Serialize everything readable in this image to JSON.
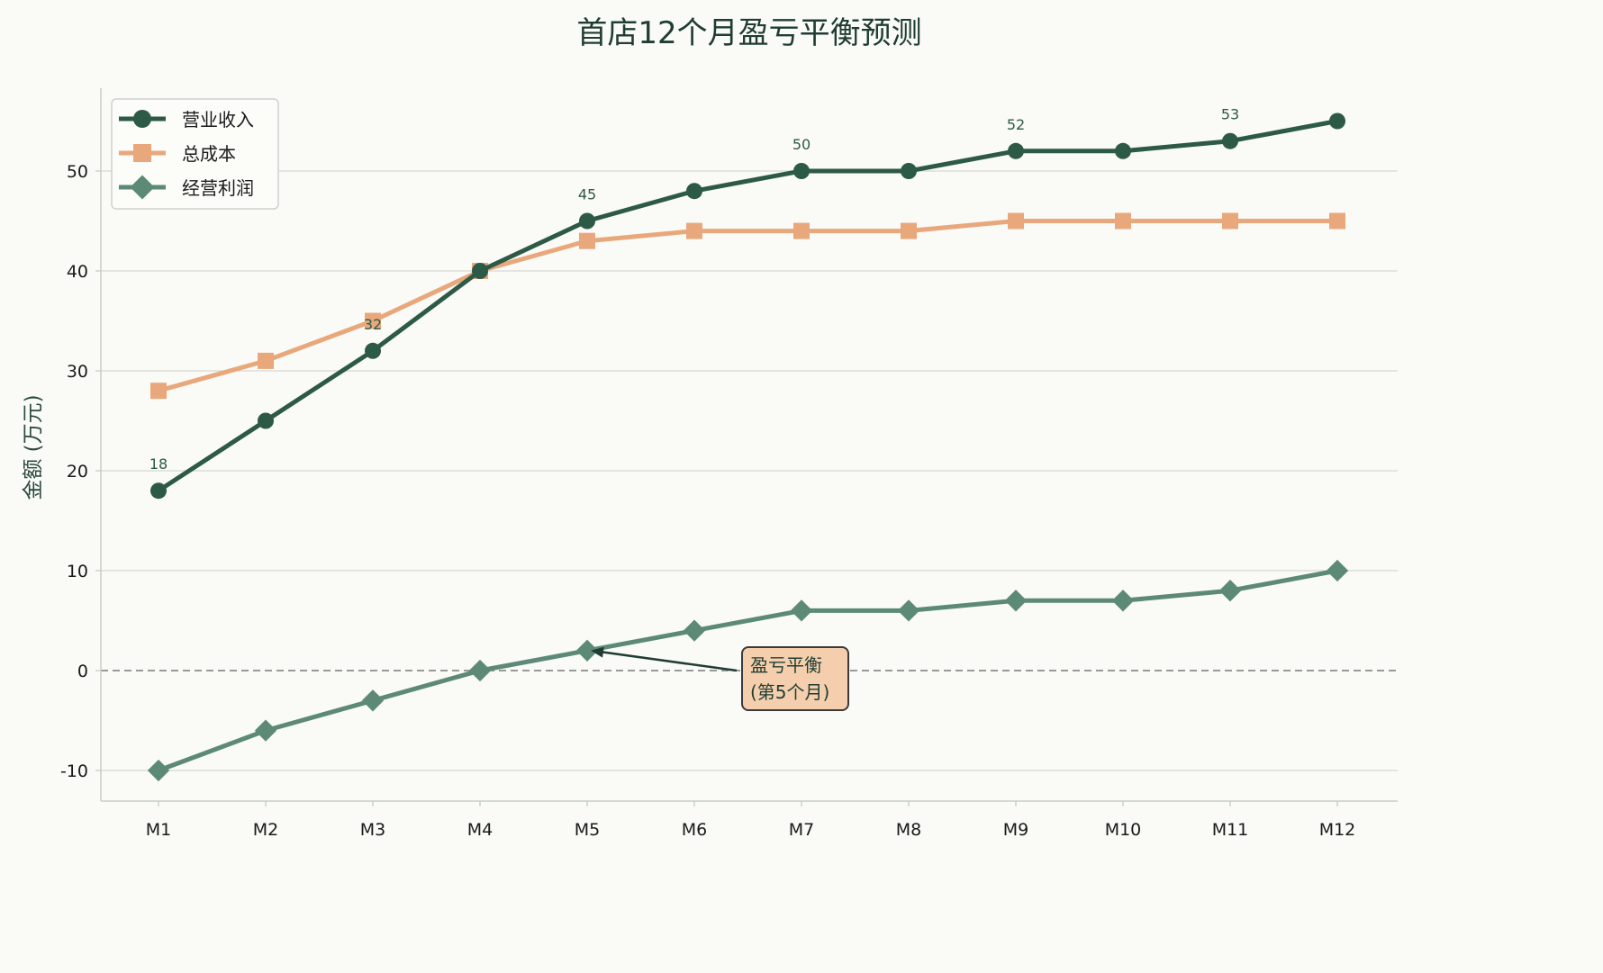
{
  "chart_data": {
    "type": "line",
    "title": "首店12个月盈亏平衡预测",
    "xlabel": "",
    "ylabel": "金额 (万元)",
    "categories": [
      "M1",
      "M2",
      "M3",
      "M4",
      "M5",
      "M6",
      "M7",
      "M8",
      "M9",
      "M10",
      "M11",
      "M12"
    ],
    "ylim": [
      -12,
      58
    ],
    "yticks": [
      -10,
      0,
      10,
      20,
      30,
      40,
      50
    ],
    "grid": "horizontal",
    "legend_position": "top-left",
    "series": [
      {
        "name": "营业收入",
        "values": [
          18,
          25,
          32,
          40,
          45,
          48,
          50,
          50,
          52,
          52,
          53,
          55
        ],
        "color": "#2d5a47",
        "marker": "circle"
      },
      {
        "name": "总成本",
        "values": [
          28,
          31,
          35,
          40,
          43,
          44,
          44,
          44,
          45,
          45,
          45,
          45
        ],
        "color": "#e8a87c",
        "marker": "square"
      },
      {
        "name": "经营利润",
        "values": [
          -10,
          -6,
          -3,
          0,
          2,
          4,
          6,
          6,
          7,
          7,
          8,
          10
        ],
        "color": "#5c8a76",
        "marker": "diamond"
      }
    ],
    "data_labels": [
      {
        "series": "营业收入",
        "index": 0,
        "text": "18"
      },
      {
        "series": "营业收入",
        "index": 2,
        "text": "32"
      },
      {
        "series": "营业收入",
        "index": 4,
        "text": "45"
      },
      {
        "series": "营业收入",
        "index": 6,
        "text": "50"
      },
      {
        "series": "营业收入",
        "index": 8,
        "text": "52"
      },
      {
        "series": "营业收入",
        "index": 10,
        "text": "53"
      }
    ],
    "reference_line": {
      "y": 0,
      "style": "dashed"
    },
    "annotation": {
      "line1": "盈亏平衡",
      "line2": "(第5个月)",
      "target_series": "经营利润",
      "target_index": 4
    }
  }
}
